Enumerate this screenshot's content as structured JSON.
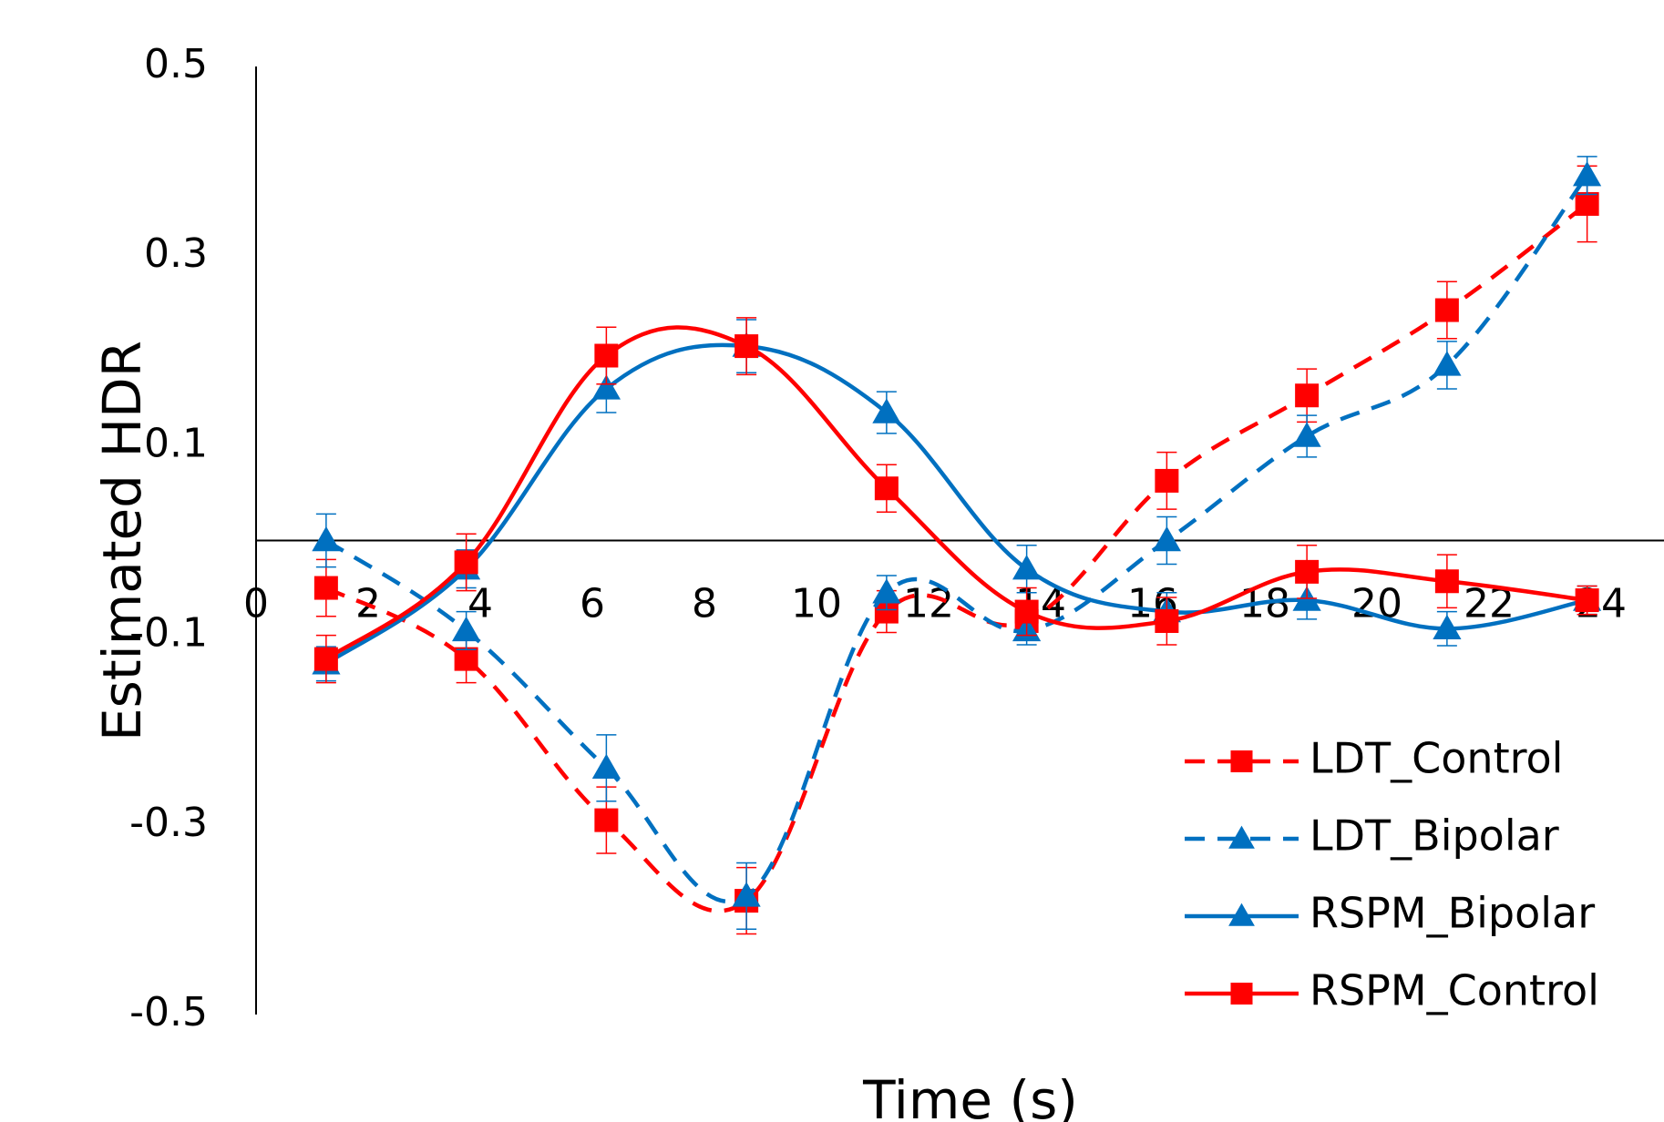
{
  "chart_data": {
    "type": "line",
    "title": "",
    "xlabel": "Time (s)",
    "ylabel": "Estimated HDR",
    "xlim": [
      0,
      24
    ],
    "ylim": [
      -0.5,
      0.5
    ],
    "x_ticks": [
      "0",
      "2",
      "4",
      "6",
      "8",
      "10",
      "12",
      "14",
      "16",
      "18",
      "20",
      "22",
      "24"
    ],
    "y_ticks": [
      "-0.5",
      "-0.3",
      "-0.1",
      "0.1",
      "0.3",
      "0.5"
    ],
    "x": [
      1.25,
      3.75,
      6.25,
      8.75,
      11.25,
      13.75,
      16.25,
      18.75,
      21.25,
      23.75
    ],
    "grid": false,
    "legend_position": "bottom-right",
    "series": [
      {
        "name": "LDT_Control",
        "color": "#ff0000",
        "line_style": "dashed",
        "marker": "square",
        "values": [
          -0.05,
          -0.125,
          -0.295,
          -0.38,
          -0.075,
          -0.085,
          0.063,
          0.153,
          0.243,
          0.355
        ],
        "errors": [
          0.03,
          0.025,
          0.035,
          0.035,
          0.022,
          0.02,
          0.03,
          0.028,
          0.03,
          0.04
        ]
      },
      {
        "name": "LDT_Bipolar",
        "color": "#0070c0",
        "line_style": "dashed",
        "marker": "triangle",
        "values": [
          0.0,
          -0.095,
          -0.24,
          -0.375,
          -0.055,
          -0.095,
          0.0,
          0.11,
          0.185,
          0.385
        ],
        "errors": [
          0.028,
          0.02,
          0.035,
          0.035,
          0.018,
          0.015,
          0.025,
          0.022,
          0.025,
          0.02
        ]
      },
      {
        "name": "RSPM_Bipolar",
        "color": "#0070c0",
        "line_style": "solid",
        "marker": "triangle",
        "values": [
          -0.13,
          -0.03,
          0.16,
          0.205,
          0.135,
          -0.03,
          -0.075,
          -0.063,
          -0.093,
          -0.063
        ],
        "errors": [
          0.018,
          0.02,
          0.025,
          0.028,
          0.022,
          0.025,
          0.02,
          0.02,
          0.018,
          0.015
        ]
      },
      {
        "name": "RSPM_Control",
        "color": "#ff0000",
        "line_style": "solid",
        "marker": "square",
        "values": [
          -0.125,
          -0.023,
          0.195,
          0.205,
          0.055,
          -0.075,
          -0.085,
          -0.033,
          -0.043,
          -0.063
        ],
        "errors": [
          0.025,
          0.03,
          0.03,
          0.03,
          0.025,
          0.025,
          0.025,
          0.028,
          0.028,
          0.015
        ]
      }
    ]
  }
}
